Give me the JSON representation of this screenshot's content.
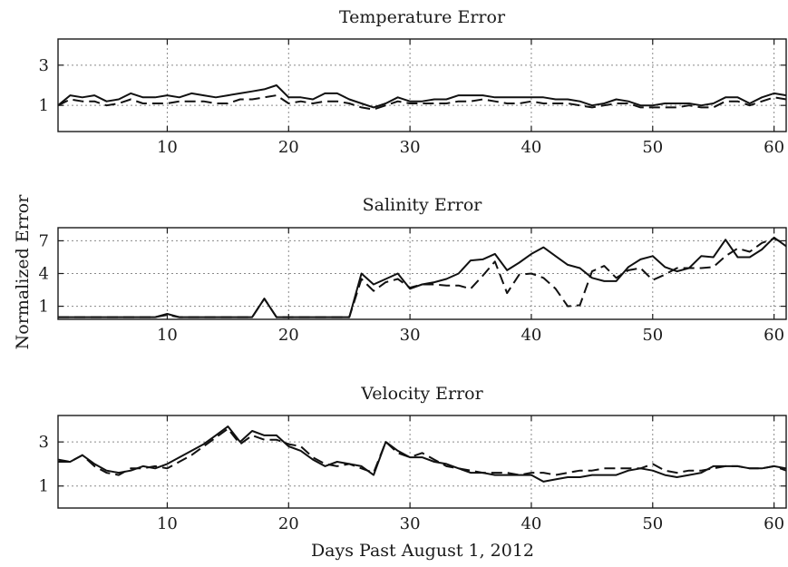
{
  "chart_data": {
    "ylabel": "Normalized Error",
    "xlabel": "Days Past August 1, 2012",
    "panels": [
      {
        "type": "line",
        "title": "Temperature Error",
        "xlim": [
          1,
          61
        ],
        "ylim": [
          -0.3,
          4.3
        ],
        "xticks": [
          10,
          20,
          30,
          40,
          50,
          60
        ],
        "yticks": [
          1,
          3
        ],
        "grid": true,
        "x": [
          1,
          2,
          3,
          4,
          5,
          6,
          7,
          8,
          9,
          10,
          11,
          12,
          13,
          14,
          15,
          16,
          17,
          18,
          19,
          20,
          21,
          22,
          23,
          24,
          25,
          26,
          27,
          28,
          29,
          30,
          31,
          32,
          33,
          34,
          35,
          36,
          37,
          38,
          39,
          40,
          41,
          42,
          43,
          44,
          45,
          46,
          47,
          48,
          49,
          50,
          51,
          52,
          53,
          54,
          55,
          56,
          57,
          58,
          59,
          60,
          61
        ],
        "series": [
          {
            "style": "solid",
            "values": [
              1.0,
              1.5,
              1.4,
              1.5,
              1.2,
              1.3,
              1.6,
              1.4,
              1.4,
              1.5,
              1.4,
              1.6,
              1.5,
              1.4,
              1.5,
              1.6,
              1.7,
              1.8,
              2.0,
              1.4,
              1.4,
              1.3,
              1.6,
              1.6,
              1.3,
              1.1,
              0.9,
              1.1,
              1.4,
              1.2,
              1.2,
              1.3,
              1.3,
              1.5,
              1.5,
              1.5,
              1.4,
              1.4,
              1.4,
              1.4,
              1.4,
              1.3,
              1.3,
              1.2,
              1.0,
              1.1,
              1.3,
              1.2,
              1.0,
              1.0,
              1.1,
              1.1,
              1.1,
              1.0,
              1.1,
              1.4,
              1.4,
              1.1,
              1.4,
              1.6,
              1.5
            ]
          },
          {
            "style": "dashed",
            "values": [
              1.0,
              1.3,
              1.2,
              1.2,
              1.0,
              1.1,
              1.3,
              1.1,
              1.1,
              1.1,
              1.2,
              1.2,
              1.2,
              1.1,
              1.1,
              1.3,
              1.3,
              1.4,
              1.5,
              1.1,
              1.2,
              1.1,
              1.2,
              1.2,
              1.1,
              0.9,
              0.8,
              1.0,
              1.2,
              1.1,
              1.1,
              1.1,
              1.1,
              1.2,
              1.2,
              1.3,
              1.2,
              1.1,
              1.1,
              1.2,
              1.1,
              1.1,
              1.1,
              1.0,
              0.9,
              1.0,
              1.1,
              1.1,
              0.9,
              0.9,
              0.9,
              0.9,
              1.0,
              0.9,
              0.9,
              1.2,
              1.2,
              1.0,
              1.2,
              1.4,
              1.3
            ]
          }
        ]
      },
      {
        "type": "line",
        "title": "Salinity Error",
        "xlim": [
          1,
          61
        ],
        "ylim": [
          -0.2,
          8.2
        ],
        "xticks": [
          10,
          20,
          30,
          40,
          50,
          60
        ],
        "yticks": [
          1,
          4,
          7
        ],
        "grid": true,
        "x": [
          1,
          2,
          3,
          4,
          5,
          6,
          7,
          8,
          9,
          10,
          11,
          12,
          13,
          14,
          15,
          16,
          17,
          18,
          19,
          20,
          21,
          22,
          23,
          24,
          25,
          26,
          27,
          28,
          29,
          30,
          31,
          32,
          33,
          34,
          35,
          36,
          37,
          38,
          39,
          40,
          41,
          42,
          43,
          44,
          45,
          46,
          47,
          48,
          49,
          50,
          51,
          52,
          53,
          54,
          55,
          56,
          57,
          58,
          59,
          60,
          61
        ],
        "series": [
          {
            "style": "solid",
            "values": [
              0,
              0,
              0,
              0,
              0,
              0,
              0,
              0,
              0,
              0.3,
              0,
              0,
              0,
              0,
              0,
              0,
              0,
              1.7,
              0,
              0,
              0,
              0,
              0,
              0,
              0,
              4.0,
              3.0,
              3.5,
              4.0,
              2.6,
              3.0,
              3.2,
              3.5,
              4.0,
              5.2,
              5.3,
              5.8,
              4.3,
              5.0,
              5.8,
              6.4,
              5.6,
              4.8,
              4.5,
              3.6,
              3.3,
              3.3,
              4.6,
              5.3,
              5.6,
              4.6,
              4.2,
              4.5,
              5.6,
              5.5,
              7.1,
              5.5,
              5.5,
              6.2,
              7.3,
              6.5
            ]
          },
          {
            "style": "dashed",
            "values": [
              0,
              0,
              0,
              0,
              0,
              0,
              0,
              0,
              0,
              0.2,
              0,
              0,
              0,
              0,
              0,
              0,
              0,
              1.7,
              0,
              0,
              0,
              0,
              0,
              0,
              0,
              3.5,
              2.4,
              3.2,
              3.5,
              2.7,
              3.0,
              3.0,
              2.9,
              2.9,
              2.6,
              3.8,
              5.1,
              2.2,
              3.9,
              4.0,
              3.6,
              2.6,
              1.0,
              1.1,
              4.2,
              4.7,
              3.6,
              4.3,
              4.5,
              3.4,
              3.9,
              4.5,
              4.5,
              4.5,
              4.6,
              5.6,
              6.3,
              6.0,
              6.8,
              7.2,
              6.7
            ]
          }
        ]
      },
      {
        "type": "line",
        "title": "Velocity Error",
        "xlim": [
          1,
          61
        ],
        "ylim": [
          0.0,
          4.2
        ],
        "xticks": [
          10,
          20,
          30,
          40,
          50,
          60
        ],
        "yticks": [
          1,
          3
        ],
        "grid": true,
        "x": [
          1,
          2,
          3,
          4,
          5,
          6,
          7,
          8,
          9,
          10,
          11,
          12,
          13,
          14,
          15,
          16,
          17,
          18,
          19,
          20,
          21,
          22,
          23,
          24,
          25,
          26,
          27,
          28,
          29,
          30,
          31,
          32,
          33,
          34,
          35,
          36,
          37,
          38,
          39,
          40,
          41,
          42,
          43,
          44,
          45,
          46,
          47,
          48,
          49,
          50,
          51,
          52,
          53,
          54,
          55,
          56,
          57,
          58,
          59,
          60,
          61
        ],
        "series": [
          {
            "style": "solid",
            "values": [
              2.1,
              2.1,
              2.4,
              2.0,
              1.7,
              1.6,
              1.7,
              1.9,
              1.8,
              2.0,
              2.3,
              2.6,
              2.9,
              3.3,
              3.7,
              3.0,
              3.5,
              3.3,
              3.3,
              2.8,
              2.6,
              2.2,
              1.9,
              2.1,
              2.0,
              1.9,
              1.5,
              3.0,
              2.6,
              2.3,
              2.3,
              2.1,
              2.0,
              1.8,
              1.6,
              1.6,
              1.5,
              1.5,
              1.5,
              1.5,
              1.2,
              1.3,
              1.4,
              1.4,
              1.5,
              1.5,
              1.5,
              1.7,
              1.8,
              1.7,
              1.5,
              1.4,
              1.5,
              1.6,
              1.9,
              1.9,
              1.9,
              1.8,
              1.8,
              1.9,
              1.8
            ]
          },
          {
            "style": "dashed",
            "values": [
              2.2,
              2.1,
              2.4,
              1.9,
              1.6,
              1.5,
              1.8,
              1.8,
              1.9,
              1.8,
              2.1,
              2.4,
              2.8,
              3.2,
              3.6,
              2.9,
              3.3,
              3.1,
              3.1,
              2.9,
              2.8,
              2.3,
              2.0,
              1.9,
              2.0,
              1.8,
              1.6,
              3.0,
              2.5,
              2.3,
              2.5,
              2.2,
              1.9,
              1.8,
              1.7,
              1.6,
              1.6,
              1.6,
              1.5,
              1.6,
              1.6,
              1.5,
              1.6,
              1.7,
              1.7,
              1.8,
              1.8,
              1.8,
              1.8,
              2.0,
              1.7,
              1.6,
              1.7,
              1.7,
              1.8,
              1.9,
              1.9,
              1.8,
              1.8,
              1.9,
              1.7
            ]
          }
        ]
      }
    ]
  }
}
